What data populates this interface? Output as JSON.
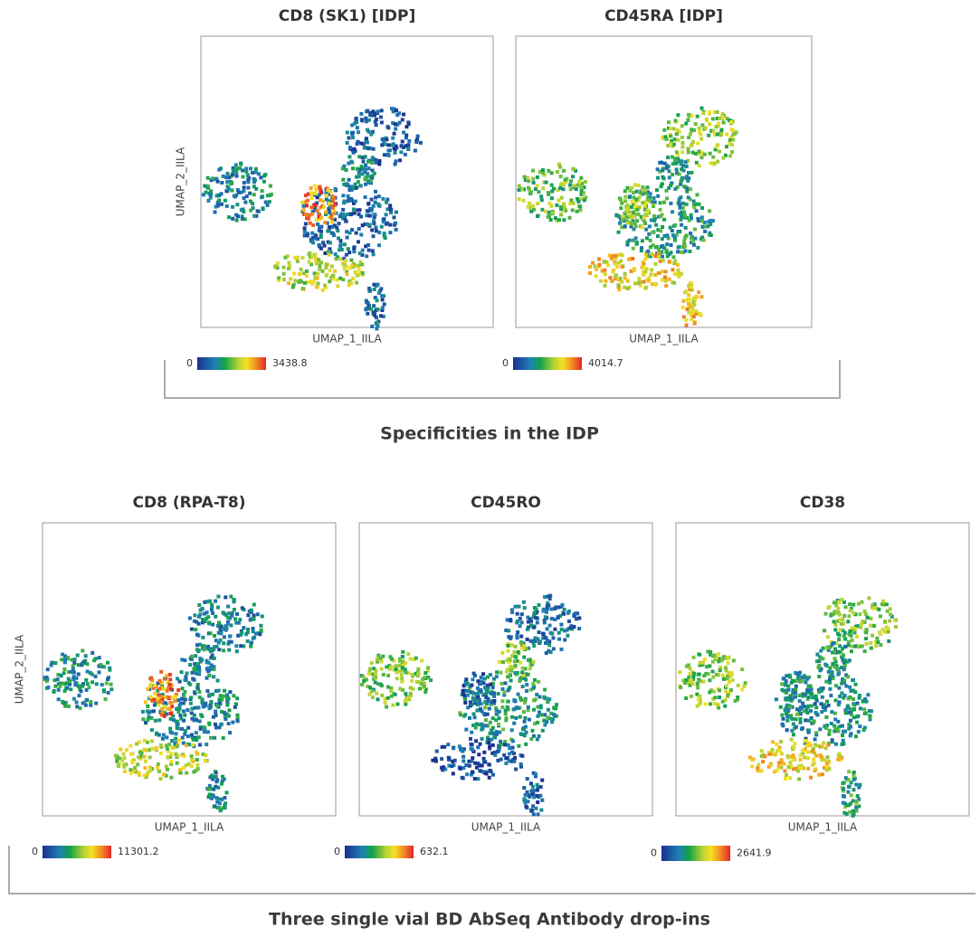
{
  "top_panels": [
    {
      "title": "CD8 (SK1) [IDP]",
      "x_label": "UMAP_1_IILA",
      "y_label": "UMAP_2_IILA",
      "scale_min": "0",
      "scale_max": "3438.8"
    },
    {
      "title": "CD45RA [IDP]",
      "x_label": "UMAP_1_IILA",
      "scale_min": "0",
      "scale_max": "4014.7"
    }
  ],
  "top_caption": "Specificities in the IDP",
  "bottom_panels": [
    {
      "title": "CD8 (RPA-T8)",
      "x_label": "UMAP_1_IILA",
      "y_label": "UMAP_2_IILA",
      "scale_min": "0",
      "scale_max": "11301.2"
    },
    {
      "title": "CD45RO",
      "x_label": "UMAP_1_IILA",
      "scale_min": "0",
      "scale_max": "632.1"
    },
    {
      "title": "CD38",
      "x_label": "UMAP_1_IILA",
      "scale_min": "0",
      "scale_max": "2641.9"
    }
  ],
  "bottom_caption": "Three single vial BD AbSeq Antibody drop-ins"
}
